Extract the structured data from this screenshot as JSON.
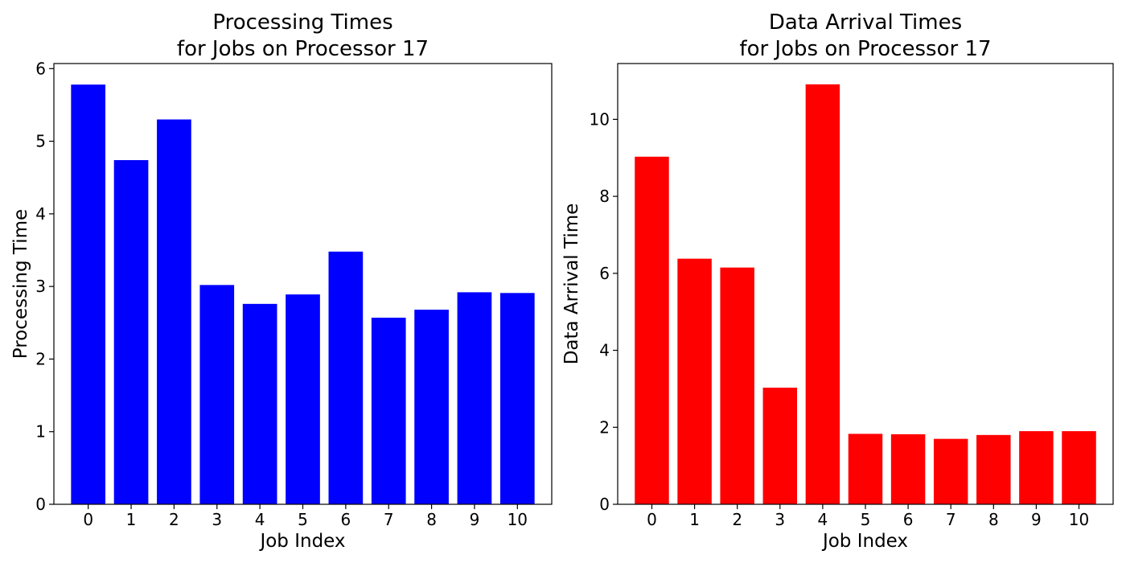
{
  "chart_data": [
    {
      "type": "bar",
      "title": "Processing Times\nfor Jobs on Processor 17",
      "xlabel": "Job Index",
      "ylabel": "Processing Time",
      "categories": [
        "0",
        "1",
        "2",
        "3",
        "4",
        "5",
        "6",
        "7",
        "8",
        "9",
        "10"
      ],
      "values": [
        5.78,
        4.74,
        5.3,
        3.02,
        2.76,
        2.89,
        3.48,
        2.57,
        2.68,
        2.92,
        2.91
      ],
      "ylim": [
        0,
        6.07
      ],
      "yticks": [
        0,
        1,
        2,
        3,
        4,
        5,
        6
      ],
      "color": "#0000ff",
      "grid": false
    },
    {
      "type": "bar",
      "title": "Data Arrival Times\nfor Jobs on Processor 17",
      "xlabel": "Job Index",
      "ylabel": "Data Arrival Time",
      "categories": [
        "0",
        "1",
        "2",
        "3",
        "4",
        "5",
        "6",
        "7",
        "8",
        "9",
        "10"
      ],
      "values": [
        9.03,
        6.38,
        6.15,
        3.03,
        10.91,
        1.83,
        1.82,
        1.7,
        1.8,
        1.9,
        1.9
      ],
      "ylim": [
        0,
        11.45
      ],
      "yticks": [
        0,
        2,
        4,
        6,
        8,
        10
      ],
      "color": "#ff0000",
      "grid": false
    }
  ]
}
